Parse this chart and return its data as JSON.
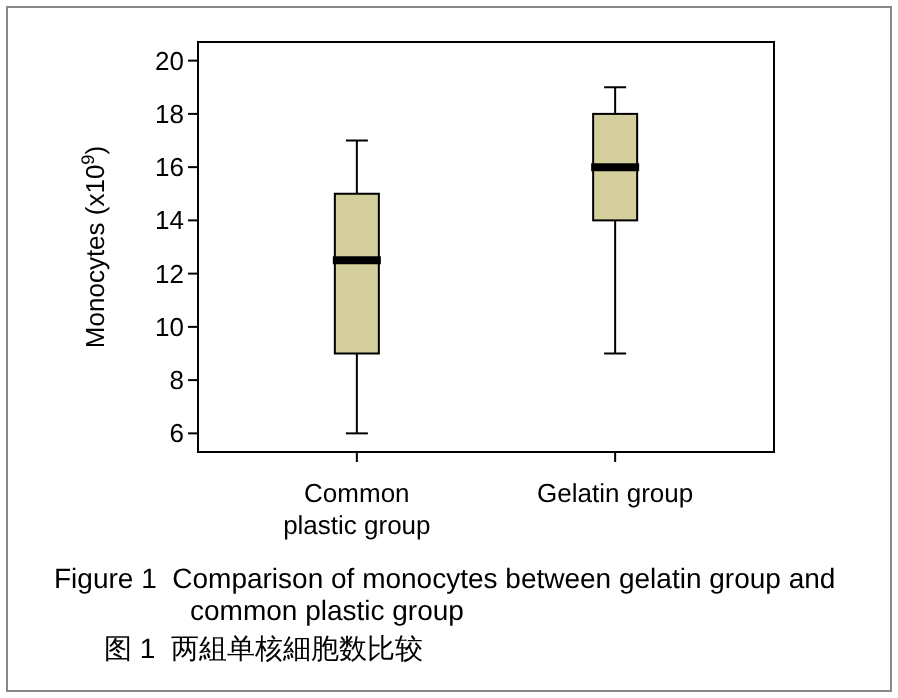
{
  "chart_data": {
    "type": "box",
    "title": "Figure 1  Comparison of monocytes between gelatin group and common plastic group",
    "subtitle": "图 1  两組单核細胞数比较",
    "ylabel": "Monocytes (x10$^{9}$)",
    "categories": [
      "Common plastic group",
      "Gelatin group"
    ],
    "color": "#d4cf9c",
    "boxes": [
      {
        "low": 6,
        "q1": 9,
        "median": 12.5,
        "q3": 15,
        "high": 17
      },
      {
        "low": 9,
        "q1": 14,
        "median": 16,
        "q3": 18,
        "high": 19
      }
    ],
    "ylim": [
      5.3,
      20.7
    ],
    "yticks": [
      6,
      8,
      10,
      12,
      14,
      16,
      18,
      20
    ],
    "grid": false
  }
}
